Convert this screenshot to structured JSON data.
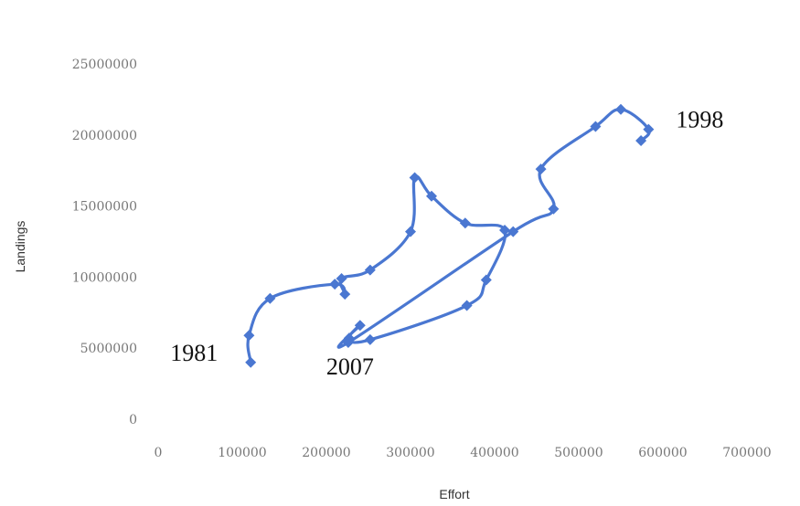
{
  "chart_data": {
    "type": "scatter",
    "title": "",
    "xlabel": "Effort",
    "ylabel": "Landings",
    "xlim": [
      0,
      700000
    ],
    "ylim": [
      0,
      25000000
    ],
    "x_ticks": [
      "0",
      "100000",
      "200000",
      "300000",
      "400000",
      "500000",
      "600000",
      "700000"
    ],
    "y_ticks": [
      "0",
      "5000000",
      "10000000",
      "15000000",
      "20000000",
      "25000000"
    ],
    "grid": false,
    "legend": "none",
    "series_color": "#4a77d1",
    "series": [
      {
        "points": [
          {
            "x": 110000,
            "y": 4000000
          },
          {
            "x": 108000,
            "y": 5900000
          },
          {
            "x": 133000,
            "y": 8500000
          },
          {
            "x": 210000,
            "y": 9500000
          },
          {
            "x": 222000,
            "y": 8800000
          },
          {
            "x": 218000,
            "y": 9900000
          },
          {
            "x": 252000,
            "y": 10500000
          },
          {
            "x": 300000,
            "y": 13200000
          },
          {
            "x": 305000,
            "y": 17000000
          },
          {
            "x": 325000,
            "y": 15700000
          },
          {
            "x": 365000,
            "y": 13800000
          },
          {
            "x": 412000,
            "y": 13300000
          },
          {
            "x": 390000,
            "y": 9800000
          },
          {
            "x": 367000,
            "y": 8000000
          },
          {
            "x": 252000,
            "y": 5600000
          },
          {
            "x": 227000,
            "y": 5700000
          },
          {
            "x": 240000,
            "y": 6600000
          },
          {
            "x": 226000,
            "y": 5400000
          },
          {
            "x": 422000,
            "y": 13200000
          },
          {
            "x": 470000,
            "y": 14800000
          },
          {
            "x": 455000,
            "y": 17600000
          },
          {
            "x": 520000,
            "y": 20600000
          },
          {
            "x": 550000,
            "y": 21800000
          },
          {
            "x": 583000,
            "y": 20400000
          },
          {
            "x": 574000,
            "y": 19600000
          }
        ]
      }
    ],
    "annotations": [
      {
        "text": "1981",
        "x": 110000,
        "y": 4000000
      },
      {
        "text": "1998",
        "x": 583000,
        "y": 20400000
      },
      {
        "text": "2007",
        "x": 226000,
        "y": 5400000
      }
    ]
  }
}
